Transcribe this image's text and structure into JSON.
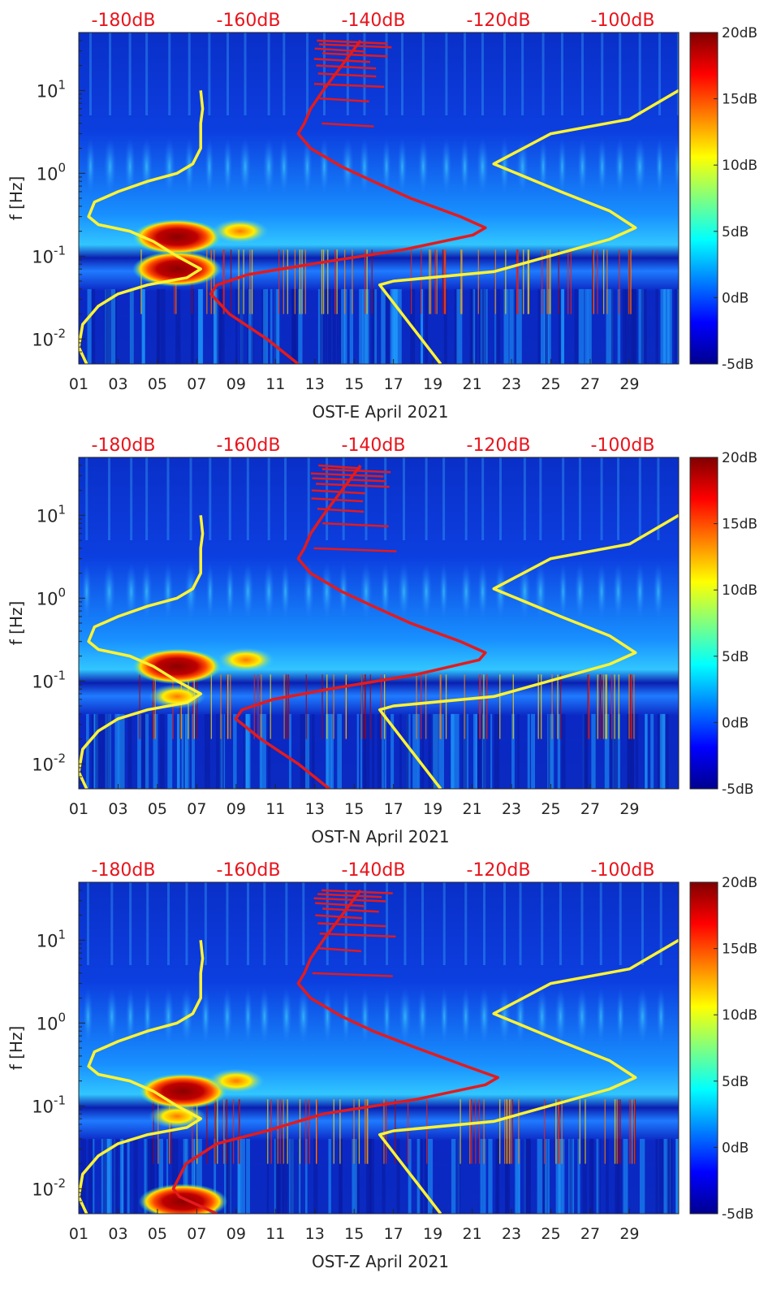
{
  "colors": {
    "psd_ref_line": "#e41a1c",
    "noise_model_lines": "#fff333",
    "top_axis_text": "#e8141c",
    "text": "#262626"
  },
  "chart_data": [
    {
      "type": "heatmap",
      "title": "",
      "xlabel": "OST-E April 2021",
      "ylabel": "f [Hz]",
      "y_scale": "log",
      "ylim": [
        0.005,
        50
      ],
      "xlim": [
        1,
        31.5
      ],
      "x_ticks": [
        "01",
        "03",
        "05",
        "07",
        "09",
        "11",
        "13",
        "15",
        "17",
        "19",
        "21",
        "23",
        "25",
        "27",
        "29"
      ],
      "y_ticks": [
        "10^-2",
        "10^-1",
        "10^0",
        "10^1"
      ],
      "top_axis_ticks": [
        "-180dB",
        "-160dB",
        "-140dB",
        "-120dB",
        "-100dB"
      ],
      "colorbar": {
        "colormap": "jet",
        "ticks": [
          "-5dB",
          "0dB",
          "5dB",
          "10dB",
          "15dB",
          "20dB"
        ],
        "range": [
          -5,
          20
        ]
      },
      "hotspots": [
        {
          "x": 6.0,
          "f": 0.17,
          "level_db": 20
        },
        {
          "x": 6.0,
          "f": 0.07,
          "level_db": 18
        },
        {
          "x": 9.2,
          "f": 0.2,
          "level_db": 12
        }
      ],
      "series": [
        {
          "x": [
            1.4,
            1.0,
            1.2,
            2.0,
            3.0,
            4.5,
            6.5,
            7.2,
            6.0,
            4.8,
            3.6,
            2.0,
            1.5,
            1.8,
            3.0,
            4.5,
            6.0,
            6.8,
            7.2,
            7.2,
            7.3,
            7.2
          ],
          "f": [
            0.005,
            0.008,
            0.015,
            0.025,
            0.035,
            0.045,
            0.055,
            0.07,
            0.1,
            0.15,
            0.2,
            0.24,
            0.3,
            0.45,
            0.6,
            0.8,
            1.0,
            1.3,
            2.0,
            4.0,
            6.0,
            10.0
          ]
        },
        {
          "x": [
            19.4,
            16.3,
            17.0,
            22.1,
            28.0,
            29.3,
            28.0,
            25.5,
            22.1,
            25.0,
            29.0,
            31.5
          ],
          "f": [
            0.005,
            0.045,
            0.05,
            0.065,
            0.16,
            0.22,
            0.35,
            0.6,
            1.3,
            3.0,
            4.5,
            10.0
          ]
        }
      ],
      "ref_curve_db": {
        "f": [
          0.005,
          0.01,
          0.02,
          0.035,
          0.045,
          0.06,
          0.08,
          0.12,
          0.18,
          0.22,
          0.3,
          0.5,
          0.8,
          1.2,
          2.0,
          3.0,
          4.0,
          6.0,
          10.0,
          20.0,
          40.0
        ],
        "db": [
          -152,
          -157,
          -163,
          -166,
          -165,
          -160,
          -150,
          -135,
          -124,
          -122,
          -126,
          -134,
          -140,
          -145,
          -150,
          -152,
          -151,
          -150,
          -148,
          -145,
          -142
        ]
      }
    },
    {
      "type": "heatmap",
      "title": "",
      "xlabel": "OST-N April 2021",
      "ylabel": "f [Hz]",
      "y_scale": "log",
      "ylim": [
        0.005,
        50
      ],
      "xlim": [
        1,
        31.5
      ],
      "x_ticks": [
        "01",
        "03",
        "05",
        "07",
        "09",
        "11",
        "13",
        "15",
        "17",
        "19",
        "21",
        "23",
        "25",
        "27",
        "29"
      ],
      "y_ticks": [
        "10^-2",
        "10^-1",
        "10^0",
        "10^1"
      ],
      "top_axis_ticks": [
        "-180dB",
        "-160dB",
        "-140dB",
        "-120dB",
        "-100dB"
      ],
      "colorbar": {
        "colormap": "jet",
        "ticks": [
          "-5dB",
          "0dB",
          "5dB",
          "10dB",
          "15dB",
          "20dB"
        ],
        "range": [
          -5,
          20
        ]
      },
      "hotspots": [
        {
          "x": 6.0,
          "f": 0.15,
          "level_db": 20
        },
        {
          "x": 6.0,
          "f": 0.065,
          "level_db": 17
        },
        {
          "x": 9.5,
          "f": 0.18,
          "level_db": 11
        }
      ],
      "series": [
        {
          "x": [
            1.4,
            1.0,
            1.2,
            2.0,
            3.0,
            4.5,
            6.5,
            7.2,
            6.0,
            4.8,
            3.6,
            2.0,
            1.5,
            1.8,
            3.0,
            4.5,
            6.0,
            6.8,
            7.2,
            7.2,
            7.3,
            7.2
          ],
          "f": [
            0.005,
            0.008,
            0.015,
            0.025,
            0.035,
            0.045,
            0.055,
            0.07,
            0.1,
            0.15,
            0.2,
            0.24,
            0.3,
            0.45,
            0.6,
            0.8,
            1.0,
            1.3,
            2.0,
            4.0,
            6.0,
            10.0
          ]
        },
        {
          "x": [
            19.4,
            16.3,
            17.0,
            22.1,
            28.0,
            29.3,
            28.0,
            25.5,
            22.1,
            25.0,
            29.0,
            31.5
          ],
          "f": [
            0.005,
            0.045,
            0.05,
            0.065,
            0.16,
            0.22,
            0.35,
            0.6,
            1.3,
            3.0,
            4.5,
            10.0
          ]
        }
      ],
      "ref_curve_db": {
        "f": [
          0.005,
          0.01,
          0.02,
          0.035,
          0.045,
          0.06,
          0.08,
          0.12,
          0.18,
          0.22,
          0.3,
          0.5,
          0.8,
          1.2,
          2.0,
          3.0,
          4.0,
          6.0,
          10.0,
          20.0,
          40.0
        ],
        "db": [
          -147,
          -152,
          -158,
          -162,
          -161,
          -156,
          -147,
          -133,
          -123,
          -122,
          -126,
          -134,
          -140,
          -145,
          -150,
          -152,
          -151,
          -150,
          -148,
          -145,
          -142
        ]
      }
    },
    {
      "type": "heatmap",
      "title": "",
      "xlabel": "OST-Z April 2021",
      "ylabel": "f [Hz]",
      "y_scale": "log",
      "ylim": [
        0.005,
        50
      ],
      "xlim": [
        1,
        31.5
      ],
      "x_ticks": [
        "01",
        "03",
        "05",
        "07",
        "09",
        "11",
        "13",
        "15",
        "17",
        "19",
        "21",
        "23",
        "25",
        "27",
        "29"
      ],
      "y_ticks": [
        "10^-2",
        "10^-1",
        "10^0",
        "10^1"
      ],
      "top_axis_ticks": [
        "-180dB",
        "-160dB",
        "-140dB",
        "-120dB",
        "-100dB"
      ],
      "colorbar": {
        "colormap": "jet",
        "ticks": [
          "-5dB",
          "0dB",
          "5dB",
          "10dB",
          "15dB",
          "20dB"
        ],
        "range": [
          -5,
          20
        ]
      },
      "hotspots": [
        {
          "x": 6.3,
          "f": 0.15,
          "level_db": 20
        },
        {
          "x": 6.0,
          "f": 0.075,
          "level_db": 16
        },
        {
          "x": 6.3,
          "f": 0.007,
          "level_db": 19
        },
        {
          "x": 9.0,
          "f": 0.2,
          "level_db": 11
        }
      ],
      "series": [
        {
          "x": [
            1.4,
            1.0,
            1.2,
            2.0,
            3.0,
            4.5,
            6.5,
            7.2,
            6.0,
            4.8,
            3.6,
            2.0,
            1.5,
            1.8,
            3.0,
            4.5,
            6.0,
            6.8,
            7.2,
            7.2,
            7.3,
            7.2
          ],
          "f": [
            0.005,
            0.008,
            0.015,
            0.025,
            0.035,
            0.045,
            0.055,
            0.07,
            0.1,
            0.15,
            0.2,
            0.24,
            0.3,
            0.45,
            0.6,
            0.8,
            1.0,
            1.3,
            2.0,
            4.0,
            6.0,
            10.0
          ]
        },
        {
          "x": [
            19.4,
            16.3,
            17.0,
            22.1,
            28.0,
            29.3,
            28.0,
            25.5,
            22.1,
            25.0,
            29.0,
            31.5
          ],
          "f": [
            0.005,
            0.045,
            0.05,
            0.065,
            0.16,
            0.22,
            0.35,
            0.6,
            1.3,
            3.0,
            4.5,
            10.0
          ]
        }
      ],
      "ref_curve_db": {
        "f": [
          0.005,
          0.008,
          0.01,
          0.02,
          0.035,
          0.05,
          0.08,
          0.12,
          0.18,
          0.22,
          0.3,
          0.5,
          0.8,
          1.2,
          2.0,
          3.0,
          4.0,
          6.0,
          10.0,
          20.0,
          40.0
        ],
        "db": [
          -165,
          -171,
          -172,
          -170,
          -165,
          -157,
          -148,
          -133,
          -122,
          -120,
          -125,
          -133,
          -140,
          -145,
          -150,
          -152,
          -151,
          -150,
          -148,
          -145,
          -142
        ]
      }
    }
  ]
}
